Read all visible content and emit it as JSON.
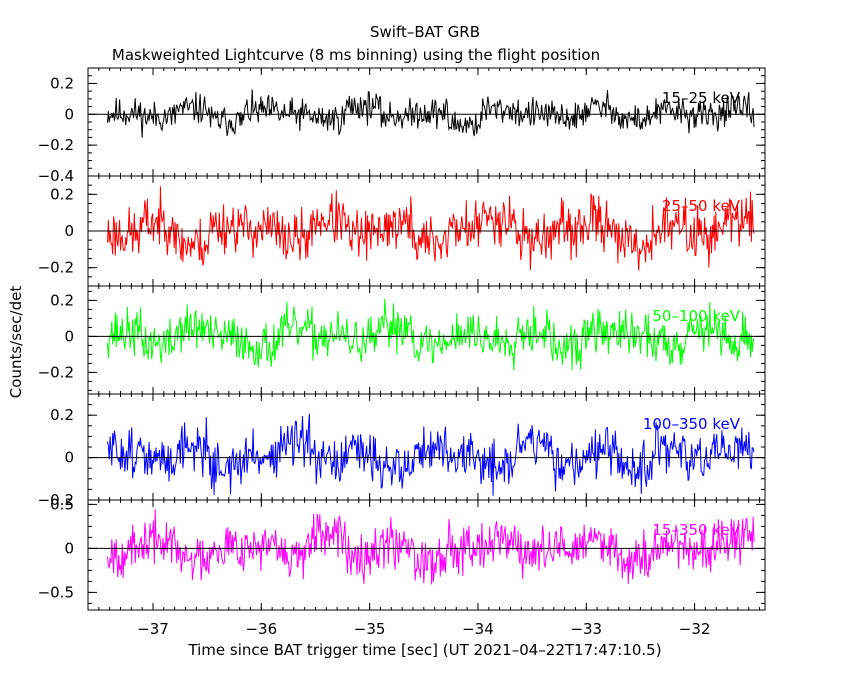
{
  "chart_data": {
    "type": "line",
    "title": "Swift–BAT GRB",
    "subtitle": "Maskweighted Lightcurve (8 ms binning) using the flight position",
    "xlabel": "Time since BAT trigger time [sec] (UT 2021–04–22T17:47:10.5)",
    "ylabel": "Counts/sec/det",
    "xlim": [
      -37.6,
      -31.35
    ],
    "x_range_data": [
      -37.42,
      -31.45
    ],
    "x_step": 0.008,
    "xticks": [
      -37,
      -36,
      -35,
      -34,
      -33,
      -32
    ],
    "xtick_labels": [
      "−37",
      "−36",
      "−35",
      "−34",
      "−33",
      "−32"
    ],
    "panels": [
      {
        "name": "15-25 keV",
        "label": "15–25 keV",
        "color": "#000000",
        "ylim": [
          -0.4,
          0.3
        ],
        "yticks": [
          -0.4,
          -0.2,
          0,
          0.2
        ],
        "ytick_labels": [
          "−0.4",
          "−0.2",
          "0",
          "0.2"
        ],
        "sigma": 0.07,
        "seed": 11,
        "values": [
          0.02,
          -0.05,
          0.1,
          -0.12,
          0.06,
          0.0,
          -0.08,
          0.15,
          -0.03,
          0.04,
          -0.18,
          0.09,
          0.01,
          -0.06,
          0.12,
          -0.1,
          0.05,
          -0.02,
          0.08,
          -0.14
        ]
      },
      {
        "name": "25-50 keV",
        "label": "25–50 keV",
        "color": "#ff0000",
        "ylim": [
          -0.3,
          0.3
        ],
        "yticks": [
          -0.2,
          0,
          0.2
        ],
        "ytick_labels": [
          "−0.2",
          "0",
          "0.2"
        ],
        "sigma": 0.1,
        "seed": 23,
        "values": [
          -0.05,
          0.14,
          -0.2,
          0.08,
          0.03,
          -0.12,
          0.18,
          -0.07,
          0.1,
          -0.16,
          0.05,
          0.21,
          -0.1,
          0.0,
          0.13,
          -0.22,
          0.07,
          -0.04,
          0.16,
          -0.09
        ]
      },
      {
        "name": "50-100 keV",
        "label": "50–100 keV",
        "color": "#00ff00",
        "ylim": [
          -0.32,
          0.28
        ],
        "yticks": [
          -0.2,
          0,
          0.2
        ],
        "ytick_labels": [
          "−0.2",
          "0",
          "0.2"
        ],
        "sigma": 0.09,
        "seed": 37,
        "values": [
          0.06,
          -0.11,
          0.13,
          -0.02,
          -0.15,
          0.09,
          0.01,
          -0.08,
          0.17,
          -0.13,
          0.04,
          -0.05,
          0.11,
          -0.19,
          0.08,
          0.02,
          -0.1,
          0.14,
          -0.06,
          0.03
        ]
      },
      {
        "name": "100-350 keV",
        "label": "100–350 keV",
        "color": "#0000ff",
        "ylim": [
          -0.2,
          0.3
        ],
        "yticks": [
          -0.2,
          0,
          0.2
        ],
        "ytick_labels": [
          "−0.2",
          "0",
          "0.2"
        ],
        "sigma": 0.08,
        "seed": 51,
        "values": [
          0.09,
          -0.04,
          0.15,
          -0.12,
          0.02,
          0.18,
          -0.08,
          0.05,
          -0.14,
          0.11,
          0.0,
          -0.1,
          0.2,
          -0.06,
          0.07,
          -0.15,
          0.12,
          -0.02,
          0.08,
          -0.11
        ]
      },
      {
        "name": "15-350 keV",
        "label": "15–350 keV",
        "color": "#ff00ff",
        "ylim": [
          -0.7,
          0.55
        ],
        "yticks": [
          -0.5,
          0,
          0.5
        ],
        "ytick_labels": [
          "−0.5",
          "0",
          "0.5"
        ],
        "sigma": 0.19,
        "seed": 67,
        "values": [
          -0.12,
          0.25,
          -0.3,
          0.1,
          0.05,
          -0.22,
          0.34,
          -0.08,
          0.18,
          -0.35,
          0.12,
          0.28,
          -0.15,
          0.02,
          0.22,
          -0.4,
          0.15,
          -0.05,
          0.3,
          -0.2
        ]
      }
    ]
  }
}
